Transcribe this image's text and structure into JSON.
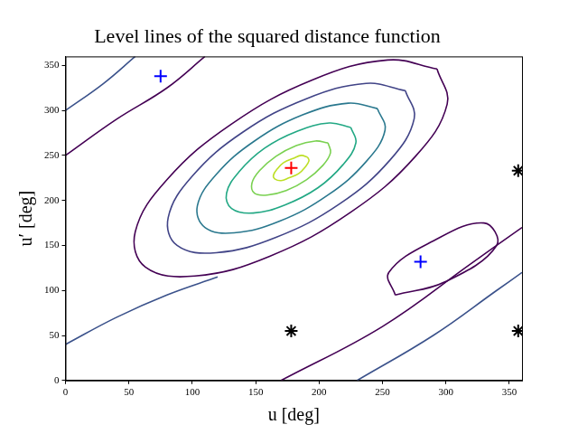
{
  "chart_data": {
    "type": "contour",
    "title": "Level lines of the squared distance function",
    "x_label": "u [deg]",
    "y_label": "u′ [deg]",
    "xlim": [
      0,
      360
    ],
    "ylim": [
      0,
      360
    ],
    "xticks": [
      0,
      50,
      100,
      150,
      200,
      250,
      300,
      350
    ],
    "yticks": [
      0,
      50,
      100,
      150,
      200,
      250,
      300,
      350
    ],
    "grid": false,
    "series": [
      {
        "color": "#bddf26",
        "x": [
          191,
          186,
          180,
          172,
          167,
          164,
          165,
          170,
          176,
          184,
          189,
          192,
          191
        ],
        "y": [
          248,
          250,
          247,
          242,
          235,
          228,
          224,
          222,
          225,
          230,
          237,
          244,
          248
        ]
      },
      {
        "color": "#7ad151",
        "x": [
          207,
          197,
          182,
          166,
          153,
          147,
          149,
          159,
          174,
          190,
          203,
          209,
          207
        ],
        "y": [
          264,
          266,
          261,
          249,
          233,
          219,
          208,
          206,
          211,
          223,
          239,
          253,
          264
        ]
      },
      {
        "color": "#22a884",
        "x": [
          225,
          208,
          183,
          157,
          137,
          127,
          131,
          148,
          173,
          199,
          219,
          229,
          225
        ],
        "y": [
          281,
          286,
          277,
          258,
          232,
          208,
          191,
          186,
          195,
          214,
          240,
          264,
          281
        ]
      },
      {
        "color": "#2a788e",
        "x": [
          246,
          223,
          187,
          149,
          119,
          104,
          110,
          133,
          169,
          207,
          237,
          252,
          246
        ],
        "y": [
          302,
          308,
          295,
          266,
          229,
          194,
          170,
          164,
          177,
          206,
          243,
          278,
          302
        ]
      },
      {
        "color": "#414487",
        "x": [
          268,
          237,
          190,
          140,
          100,
          81,
          88,
          119,
          166,
          216,
          256,
          275,
          268
        ],
        "y": [
          322,
          330,
          313,
          276,
          227,
          181,
          150,
          142,
          159,
          196,
          245,
          291,
          322
        ]
      },
      {
        "color": "#440154",
        "x": [
          293,
          254,
          195,
          131,
          80,
          55,
          63,
          102,
          161,
          225,
          276,
          301,
          293
        ],
        "y": [
          346,
          356,
          334,
          285,
          223,
          165,
          126,
          116,
          138,
          187,
          249,
          307,
          346
        ]
      },
      {
        "color": "#440154",
        "x": [
          0,
          40,
          80,
          110
        ],
        "y": [
          250,
          290,
          325,
          360
        ]
      },
      {
        "color": "#3b528b",
        "x": [
          0,
          30,
          55
        ],
        "y": [
          300,
          330,
          360
        ]
      },
      {
        "color": "#440154",
        "x": [
          170,
          250,
          320,
          360
        ],
        "y": [
          0,
          60,
          130,
          170
        ]
      },
      {
        "color": "#3b528b",
        "x": [
          230,
          290,
          340,
          360
        ],
        "y": [
          0,
          50,
          100,
          120
        ]
      },
      {
        "color": "#440154",
        "x": [
          260,
          300,
          340,
          330,
          290,
          255,
          260
        ],
        "y": [
          95,
          110,
          150,
          175,
          155,
          120,
          95
        ]
      },
      {
        "color": "#3b528b",
        "x": [
          0,
          40,
          80,
          120
        ],
        "y": [
          40,
          70,
          95,
          115
        ]
      }
    ],
    "markers": [
      {
        "x": [
          178
        ],
        "y": [
          236
        ],
        "color": "#ff0000",
        "marker": "cross"
      },
      {
        "x": [
          75,
          280
        ],
        "y": [
          338,
          132
        ],
        "color": "#0000ff",
        "marker": "cross"
      },
      {
        "x": [
          178,
          357,
          357
        ],
        "y": [
          55,
          233,
          55
        ],
        "color": "#000000",
        "marker": "star"
      }
    ]
  }
}
